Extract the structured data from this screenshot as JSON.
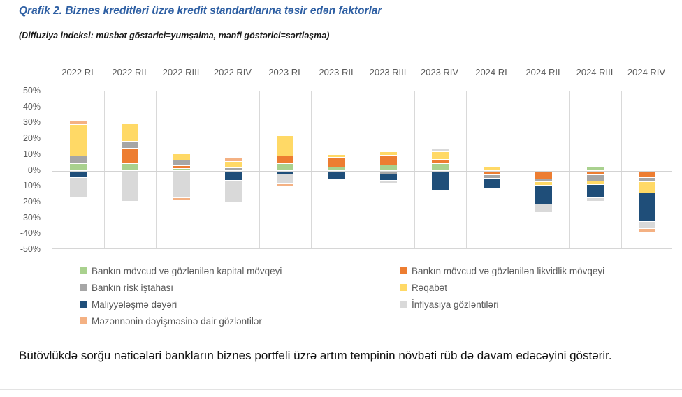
{
  "page": {
    "title": "Qrafik 2. Biznes kreditləri üzrə kredit standartlarına təsir edən faktorlar",
    "subtitle": "(Diffuziya indeksi: müsbət göstərici=yumşalma, mənfi göstərici=sərtləşmə)",
    "footer_text": "Bütövlükdə sorğu nəticələri bankların biznes portfeli üzrə artım tempinin növbəti rüb də davam edəcəyini göstərir."
  },
  "colors": {
    "title_blue": "#2e5fa3",
    "axis_text": "#595959",
    "grid": "#d9d9d9",
    "capital_green": "#a9d18e",
    "liquidity_orange": "#ed7d31",
    "risk_gray": "#a6a6a6",
    "competition_yellow": "#ffd966",
    "funding_dark_blue": "#1f4e79",
    "inflation_light_gray": "#d9d9d9",
    "fx_peach": "#f4b183"
  },
  "chart_data": {
    "type": "bar",
    "stacked": true,
    "title": "Qrafik 2. Biznes kreditləri üzrə kredit standartlarına təsir edən faktorlar",
    "subtitle": "(Diffuziya indeksi: müsbət göstərici=yumşalma, mənfi göstərici=sərtləşmə)",
    "xlabel": "",
    "ylabel": "",
    "ylim": [
      -50,
      50
    ],
    "ytick_step": 10,
    "ytick_format": "percent",
    "grid": "column-separators-and-zero-line",
    "legend_position": "bottom",
    "categories": [
      "2022 RI",
      "2022 RII",
      "2022 RIII",
      "2022 RIV",
      "2023 RI",
      "2023 RII",
      "2023 RIII",
      "2023 RIV",
      "2024 RI",
      "2024 RII",
      "2024 RIII",
      "2024 RIV"
    ],
    "series": [
      {
        "name": "Bankın mövcud və gözlənilən kapital mövqeyi",
        "color": "#a9d18e",
        "values": [
          4,
          4,
          1,
          0,
          4,
          2,
          3.5,
          4,
          0,
          0,
          2,
          0
        ]
      },
      {
        "name": "Bankın mövcud və gözlənilən likvidlik mövqeyi",
        "color": "#ed7d31",
        "values": [
          0,
          10,
          2,
          0,
          5,
          6,
          6,
          3,
          -2.5,
          -5,
          -2.5,
          -4
        ]
      },
      {
        "name": "Bankın risk iştahası",
        "color": "#a6a6a6",
        "values": [
          5,
          4.5,
          3.5,
          1.5,
          0,
          0,
          -2,
          0,
          -2,
          -2,
          -4,
          -3
        ]
      },
      {
        "name": "Rəqabət",
        "color": "#ffd966",
        "values": [
          20,
          11,
          4,
          4,
          13,
          2,
          2,
          4.5,
          2.5,
          -2,
          -2,
          -7
        ]
      },
      {
        "name": "Maliyyələşmə dəyəri",
        "color": "#1f4e79",
        "values": [
          -4,
          0,
          0,
          -6,
          -2,
          -5.5,
          -4,
          -12.5,
          -6.5,
          -12,
          -8.5,
          -18
        ]
      },
      {
        "name": "İnflyasiya gözləntiləri",
        "color": "#d9d9d9",
        "values": [
          -13,
          -19,
          -17,
          -14,
          -6,
          0,
          -1.5,
          2.5,
          0,
          -5,
          -2,
          -4.5
        ]
      },
      {
        "name": "Məzənnənin dəyişməsinə dair gözləntilər",
        "color": "#f4b183",
        "values": [
          2,
          0,
          -1.5,
          2,
          -2,
          0,
          0,
          0,
          0,
          0,
          0,
          -2.5
        ]
      }
    ],
    "legend_left_series_indexes": [
      0,
      2,
      4,
      6
    ],
    "legend_right_series_indexes": [
      1,
      3,
      5
    ]
  }
}
